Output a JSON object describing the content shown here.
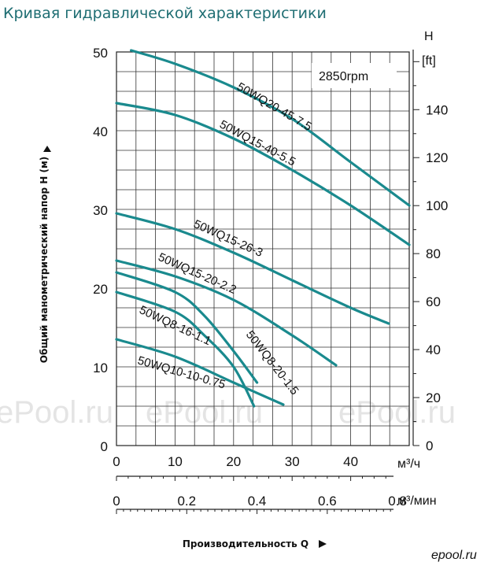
{
  "page_title": "Кривая гидравлической характеристики",
  "chart_data": {
    "type": "line",
    "speed_label": "2850rpm",
    "y_left": {
      "ticks": [
        "0",
        "10",
        "20",
        "30",
        "40",
        "50"
      ],
      "lim": [
        0,
        50
      ],
      "label": "Общий манометрический напор H (м)"
    },
    "y_right": {
      "title": "H",
      "unit": "[ft]",
      "ticks": [
        "0",
        "20",
        "40",
        "60",
        "80",
        "100",
        "120",
        "140"
      ]
    },
    "x_top": {
      "ticks": [
        "0",
        "10",
        "20",
        "30",
        "40"
      ],
      "unit": "м³/ч",
      "lim": [
        0,
        50
      ]
    },
    "x_bottom": {
      "ticks": [
        "0",
        "0.2",
        "0.4",
        "0.6",
        "0.8"
      ],
      "unit": "м³/мин"
    },
    "xlabel": "Производительность Q",
    "grid": true,
    "series": [
      {
        "name": "50WQ20-45-7.5",
        "x": [
          2.5,
          10,
          20,
          30,
          40,
          50
        ],
        "y": [
          50.2,
          48.5,
          45.5,
          41.5,
          36,
          30.5
        ]
      },
      {
        "name": "50WQ15-40-5.5",
        "x": [
          0,
          10,
          20,
          30,
          40,
          50
        ],
        "y": [
          43.5,
          42,
          39,
          35,
          30.5,
          25.5
        ]
      },
      {
        "name": "50WQ15-26-3",
        "x": [
          0,
          10,
          20,
          30,
          40,
          46.5
        ],
        "y": [
          29.5,
          27.5,
          24.5,
          21,
          17.5,
          15.5
        ]
      },
      {
        "name": "50WQ15-20-2.2",
        "x": [
          0,
          10,
          20,
          30,
          37.5
        ],
        "y": [
          23.5,
          21.5,
          18.5,
          14,
          10.2
        ]
      },
      {
        "name": "50WQ8-20-1.5",
        "x": [
          0,
          10,
          15,
          20,
          24
        ],
        "y": [
          22,
          19.5,
          16.5,
          12,
          8
        ]
      },
      {
        "name": "50WQ8-16-1.1",
        "x": [
          0,
          10,
          15,
          20,
          23.5
        ],
        "y": [
          19.5,
          17,
          14,
          10,
          5
        ]
      },
      {
        "name": "50WQ10-10-0.75",
        "x": [
          0,
          10,
          20,
          28.5
        ],
        "y": [
          13.5,
          11.3,
          8,
          5.2
        ]
      }
    ],
    "watermark": [
      "ePool.ru",
      "ePool.ru",
      "ePool.ru"
    ],
    "footer_logo": "epool.ru"
  }
}
